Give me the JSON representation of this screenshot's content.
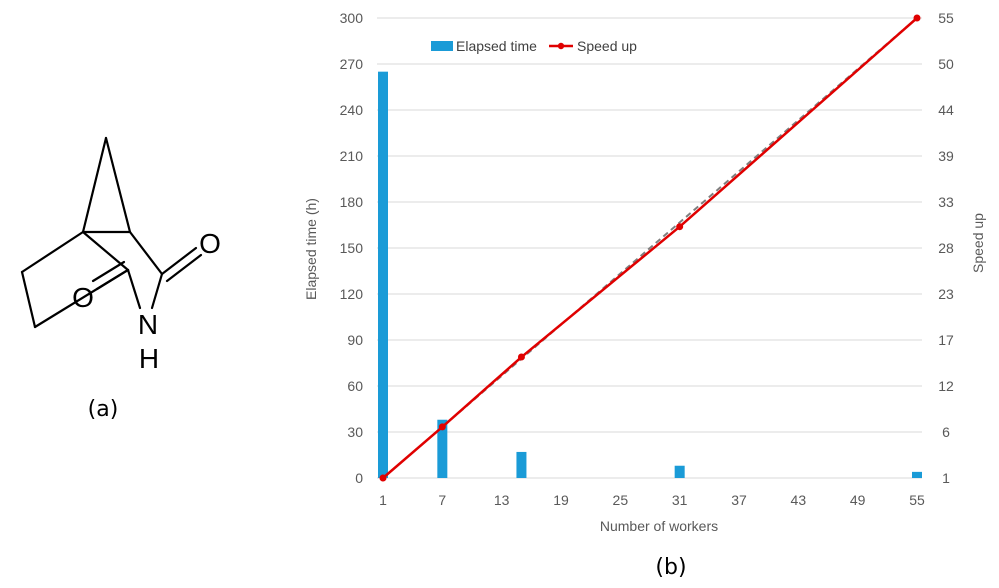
{
  "panel_a": {
    "label": "(a)",
    "atoms": {
      "oxygen_top": "O",
      "oxygen_left": "O",
      "nitrogen": "N",
      "hydrogen": "H"
    }
  },
  "panel_b": {
    "label": "(b)"
  },
  "colors": {
    "bar": "#1a9bd7",
    "line": "#e00000",
    "trend": "#7f7f7f",
    "grid": "#d9d9d9",
    "text": "#595959"
  },
  "chart_data": {
    "type": "bar+line",
    "xlabel": "Number of workers",
    "ylabel_left": "Elapsed time (h)",
    "ylabel_right": "Speed up",
    "xlim": [
      1,
      55
    ],
    "x_ticks": [
      1,
      7,
      13,
      19,
      25,
      31,
      37,
      43,
      49,
      55
    ],
    "ylim_left": [
      0,
      300
    ],
    "y_left_ticks": [
      0,
      30,
      60,
      90,
      120,
      150,
      180,
      210,
      240,
      270,
      300
    ],
    "ylim_right": [
      1,
      55
    ],
    "y_right_tick_labels": [
      "1",
      "6",
      "12",
      "17",
      "23",
      "28",
      "33",
      "39",
      "44",
      "50",
      "55"
    ],
    "grid": true,
    "legend_position": "top-left",
    "series": [
      {
        "name": "Elapsed time",
        "type": "bar",
        "axis": "left",
        "x": [
          1,
          7,
          15,
          31,
          55
        ],
        "values": [
          265,
          38,
          17,
          8,
          4
        ]
      },
      {
        "name": "Speed up",
        "type": "line",
        "axis": "right",
        "marker": "circle",
        "x": [
          1,
          7,
          15,
          31,
          55
        ],
        "values": [
          1,
          7,
          15.2,
          30.5,
          55
        ]
      }
    ],
    "trendline": {
      "type": "linear",
      "style": "dashed",
      "x": [
        1,
        55
      ],
      "values": [
        1,
        55
      ]
    }
  }
}
